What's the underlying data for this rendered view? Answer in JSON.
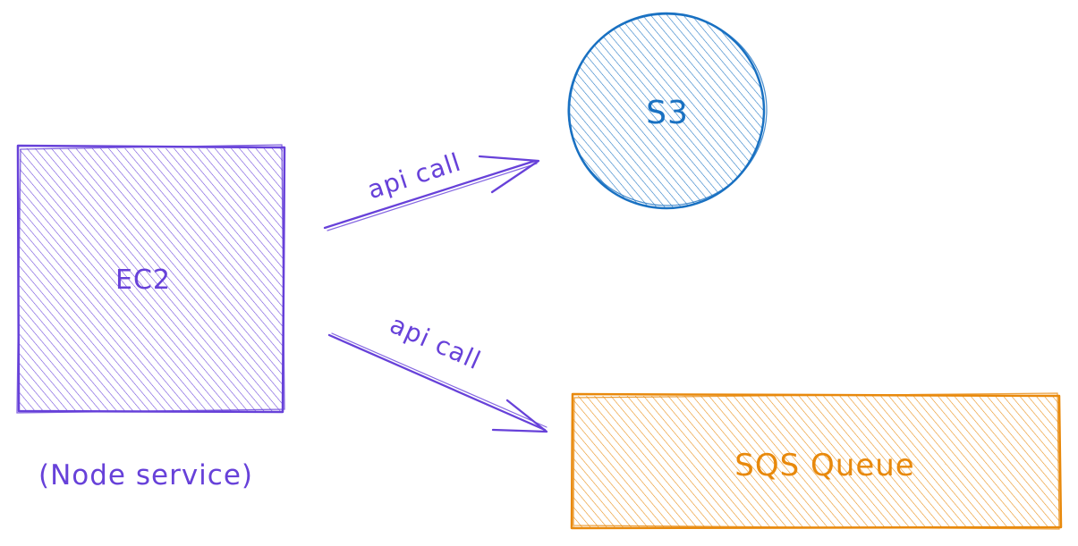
{
  "colors": {
    "ec2": "#6741d9",
    "s3": "#1971c2",
    "sqs": "#e8890c"
  },
  "nodes": {
    "ec2": {
      "label": "EC2",
      "caption": "(Node service)"
    },
    "s3": {
      "label": "S3"
    },
    "sqs": {
      "label": "SQS Queue"
    }
  },
  "edges": {
    "to_s3": {
      "label": "api call"
    },
    "to_sqs": {
      "label": "api call"
    }
  }
}
